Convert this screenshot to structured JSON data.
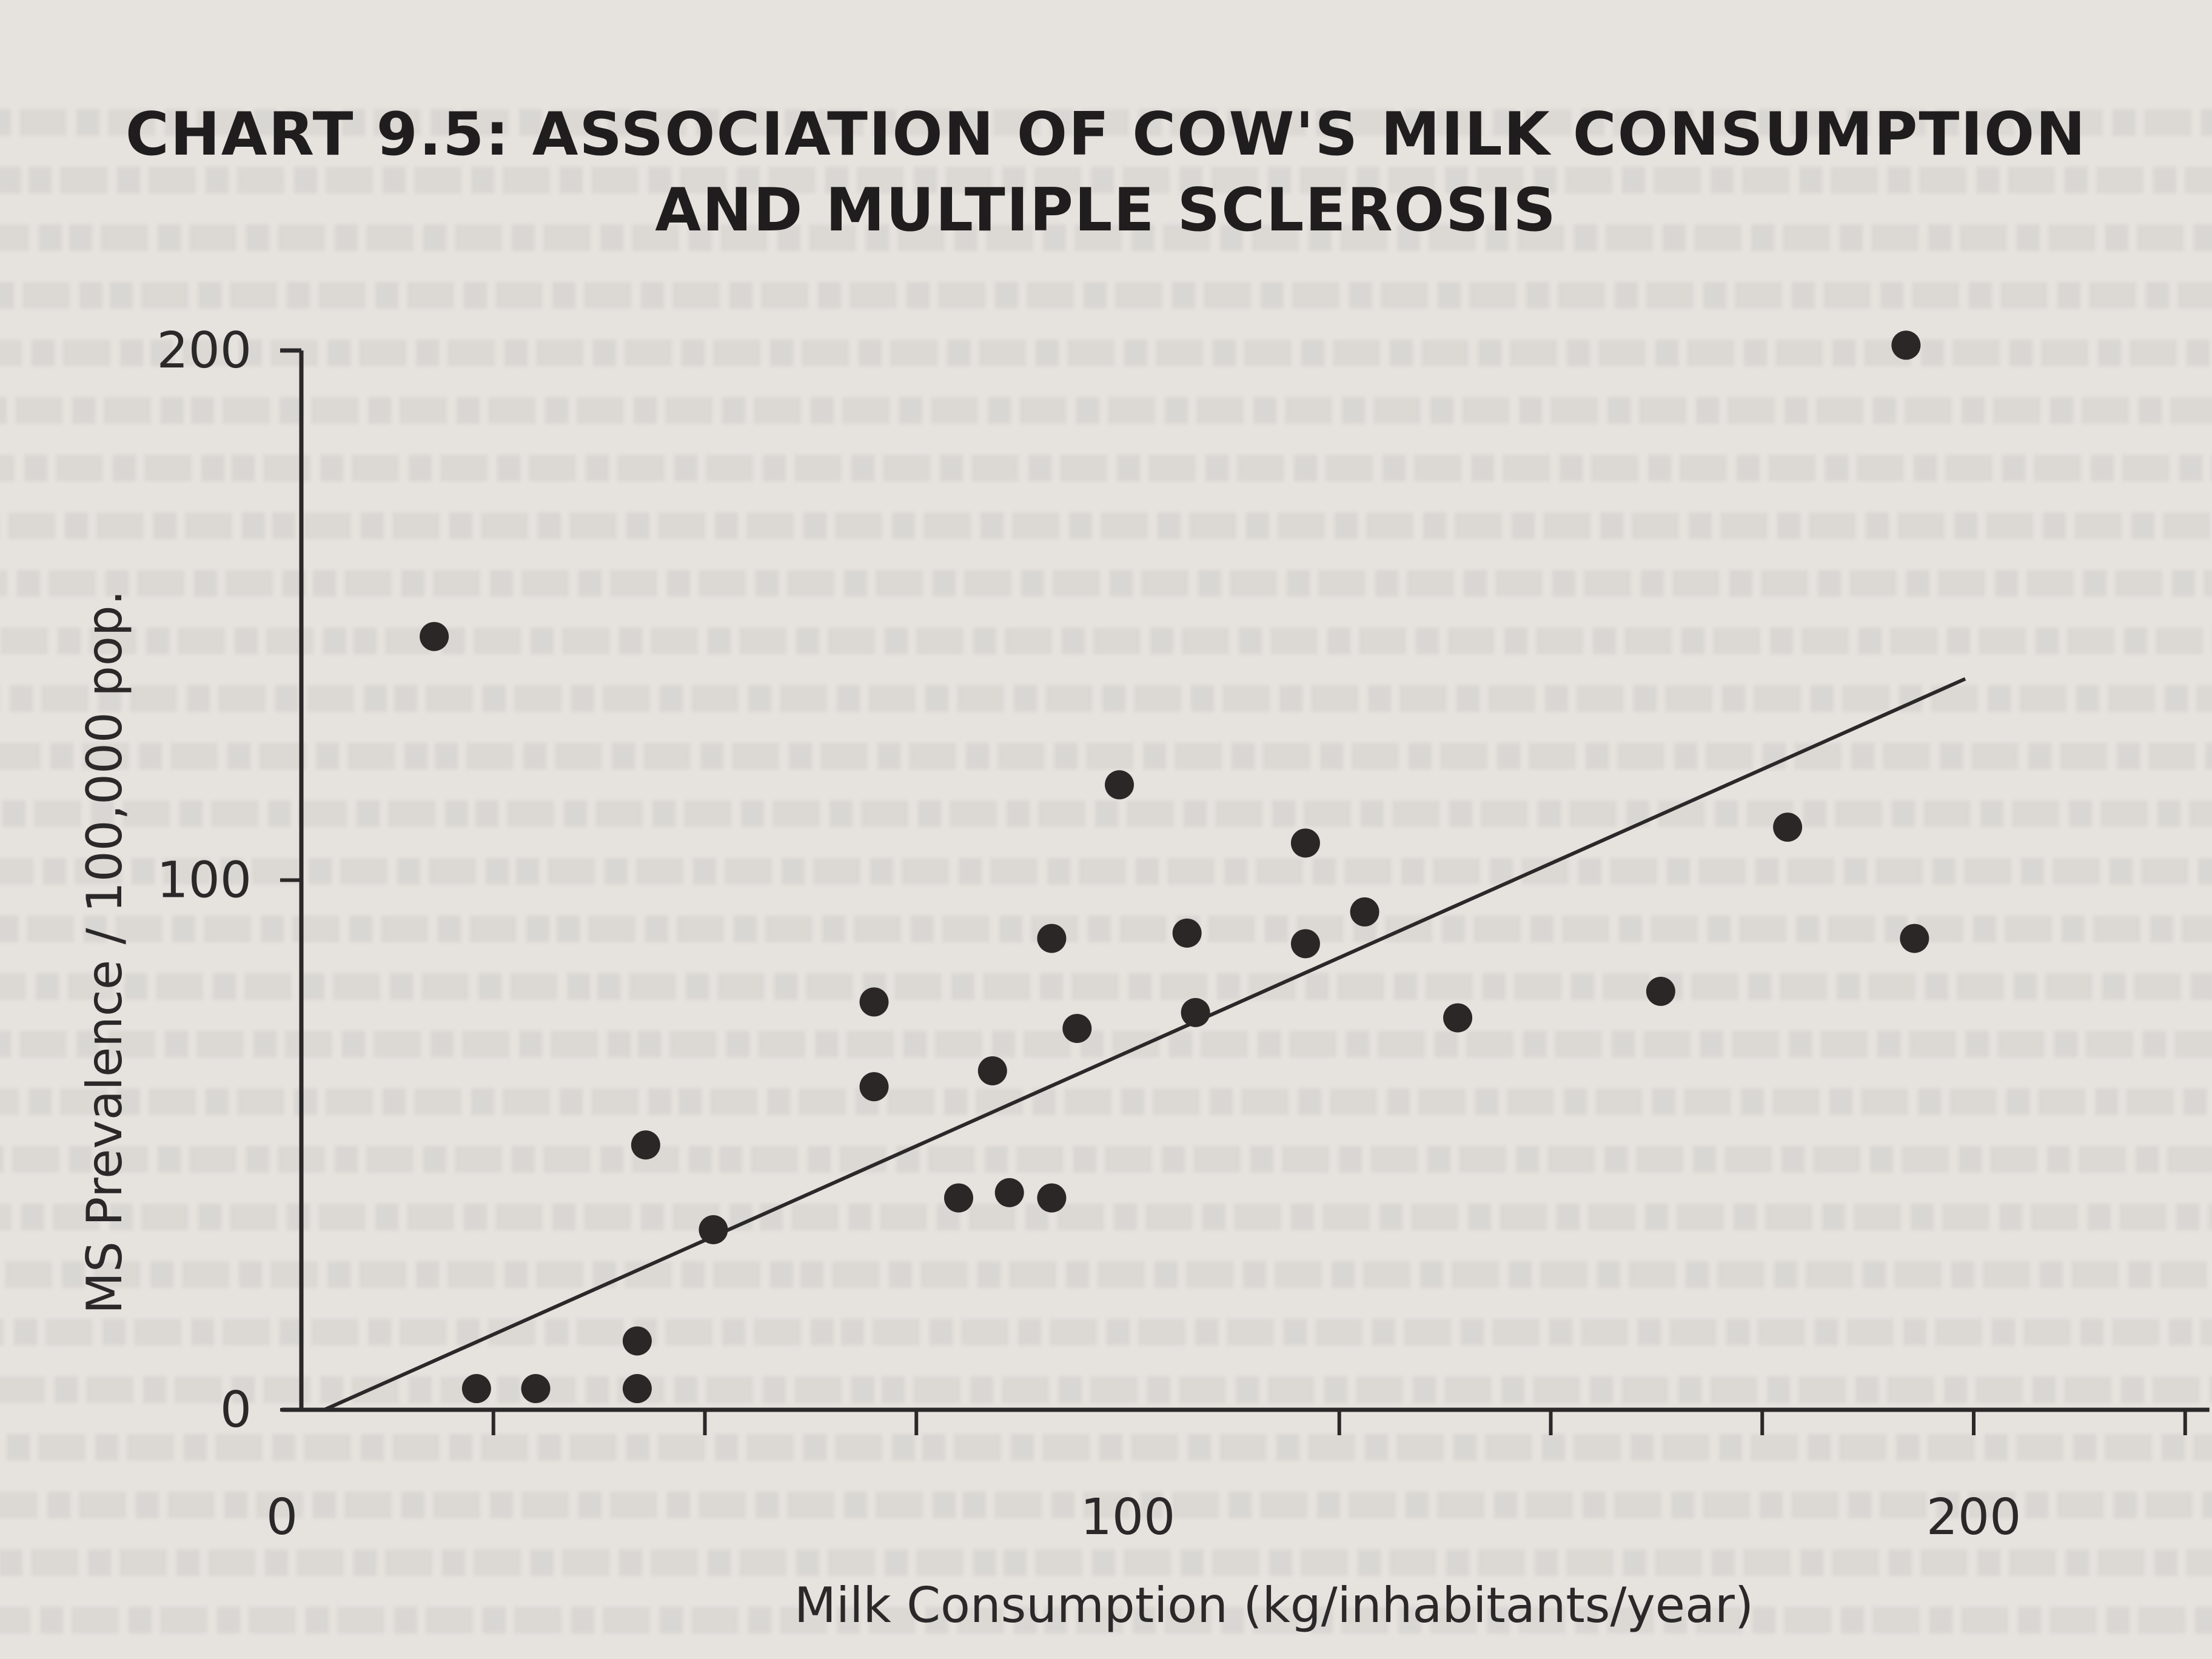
{
  "chart_data": {
    "type": "scatter",
    "title_line1": "CHART 9.5: ASSOCIATION OF COW'S MILK CONSUMPTION",
    "title_line2": "AND MULTIPLE SCLEROSIS",
    "xlabel": "Milk Consumption (kg/inhabitants/year)",
    "ylabel": "MS Prevalence / 100,000 pop.",
    "xlim": [
      0,
      225
    ],
    "ylim": [
      0,
      200
    ],
    "x_ticks": [
      0,
      100,
      200
    ],
    "y_ticks": [
      0,
      100,
      200
    ],
    "x_minor_ticks": [
      25,
      50,
      75,
      125,
      150,
      175,
      200,
      225
    ],
    "points": [
      {
        "x": 18,
        "y": 146
      },
      {
        "x": 23,
        "y": 4
      },
      {
        "x": 30,
        "y": 4
      },
      {
        "x": 42,
        "y": 4
      },
      {
        "x": 42,
        "y": 13
      },
      {
        "x": 43,
        "y": 50
      },
      {
        "x": 51,
        "y": 34
      },
      {
        "x": 70,
        "y": 61
      },
      {
        "x": 70,
        "y": 77
      },
      {
        "x": 80,
        "y": 40
      },
      {
        "x": 84,
        "y": 64
      },
      {
        "x": 86,
        "y": 41
      },
      {
        "x": 91,
        "y": 40
      },
      {
        "x": 91,
        "y": 89
      },
      {
        "x": 94,
        "y": 72
      },
      {
        "x": 99,
        "y": 118
      },
      {
        "x": 107,
        "y": 90
      },
      {
        "x": 108,
        "y": 75
      },
      {
        "x": 121,
        "y": 107
      },
      {
        "x": 121,
        "y": 88
      },
      {
        "x": 128,
        "y": 94
      },
      {
        "x": 139,
        "y": 74
      },
      {
        "x": 163,
        "y": 79
      },
      {
        "x": 178,
        "y": 110
      },
      {
        "x": 192,
        "y": 201
      },
      {
        "x": 193,
        "y": 89
      }
    ],
    "trendline": {
      "x": [
        5,
        199
      ],
      "y": [
        0,
        138
      ]
    },
    "colors": {
      "marker": "#2b2727",
      "axis": "#2a2828",
      "line": "#2a2828",
      "background": "#e6e3df"
    }
  }
}
